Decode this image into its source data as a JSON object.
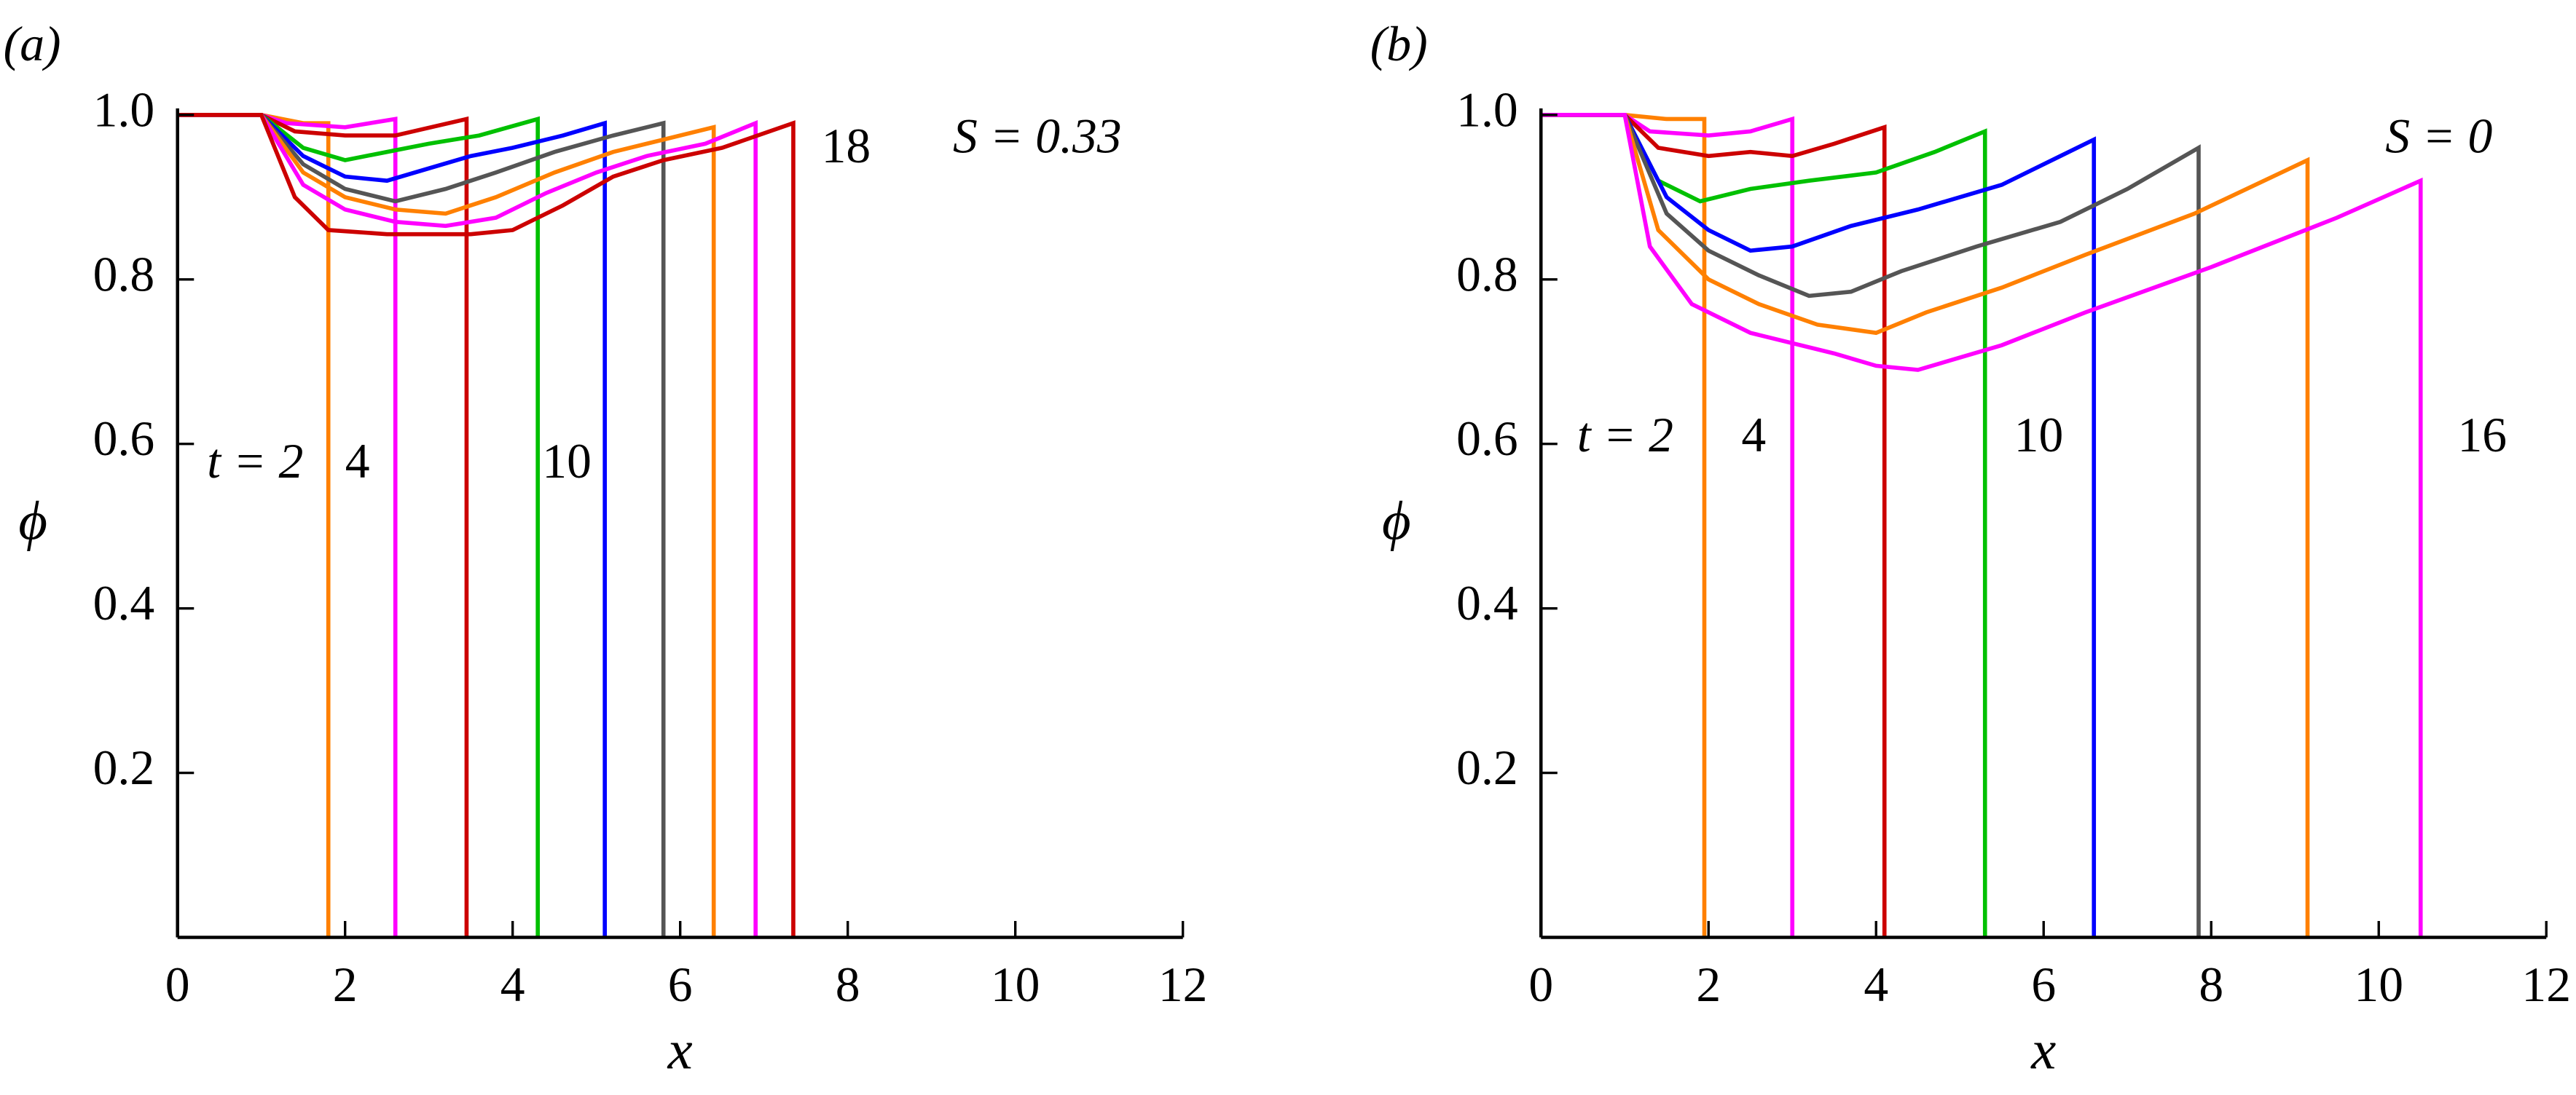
{
  "chart_data": [
    {
      "type": "line",
      "panel_label": "(a)",
      "xlabel": "x",
      "ylabel": "ϕ",
      "annotations": [
        "S = 0.33",
        "t = 2",
        "4",
        "10",
        "18"
      ],
      "xlim": [
        0,
        12
      ],
      "ylim": [
        0,
        1
      ],
      "xticks": [
        0,
        2,
        4,
        6,
        8,
        10,
        12
      ],
      "yticks": [
        0.2,
        0.4,
        0.6,
        0.8,
        {
          "value": 1,
          "label": "1.0"
        }
      ],
      "series": [
        {
          "color": "#ff8000",
          "x": [
            0,
            1,
            1.5,
            1.8,
            1.8
          ],
          "values": [
            1,
            1,
            0.99,
            0.99,
            0
          ]
        },
        {
          "color": "#ff00ff",
          "x": [
            0,
            1,
            1.3,
            2,
            2.6,
            2.6
          ],
          "values": [
            1,
            1,
            0.99,
            0.985,
            0.995,
            0
          ]
        },
        {
          "color": "#cc0000",
          "x": [
            0,
            1,
            1.4,
            2,
            2.6,
            3.45,
            3.45
          ],
          "values": [
            1,
            1,
            0.98,
            0.975,
            0.975,
            0.995,
            0
          ]
        },
        {
          "color": "#00c000",
          "x": [
            0,
            1,
            1.5,
            2,
            2.5,
            3,
            3.6,
            4.3,
            4.3
          ],
          "values": [
            1,
            1,
            0.96,
            0.945,
            0.955,
            0.965,
            0.975,
            0.995,
            0
          ]
        },
        {
          "color": "#0000ff",
          "x": [
            0,
            1,
            1.5,
            2,
            2.5,
            3,
            3.5,
            4,
            4.6,
            5.1,
            5.1
          ],
          "values": [
            1,
            1,
            0.95,
            0.925,
            0.92,
            0.935,
            0.95,
            0.96,
            0.975,
            0.99,
            0
          ]
        },
        {
          "color": "#555555",
          "x": [
            0,
            1,
            1.5,
            2,
            2.6,
            3.2,
            3.8,
            4.5,
            5.2,
            5.8,
            5.8
          ],
          "values": [
            1,
            1,
            0.94,
            0.91,
            0.895,
            0.91,
            0.93,
            0.955,
            0.975,
            0.99,
            0
          ]
        },
        {
          "color": "#ff8000",
          "x": [
            0,
            1,
            1.5,
            2,
            2.6,
            3.2,
            3.8,
            4.5,
            5.2,
            5.8,
            6.4,
            6.4
          ],
          "values": [
            1,
            1,
            0.93,
            0.9,
            0.885,
            0.88,
            0.9,
            0.93,
            0.955,
            0.97,
            0.985,
            0
          ]
        },
        {
          "color": "#ff00ff",
          "x": [
            0,
            1,
            1.5,
            2,
            2.6,
            3.2,
            3.8,
            4.4,
            5,
            5.6,
            6.3,
            6.9,
            6.9
          ],
          "values": [
            1,
            1,
            0.915,
            0.885,
            0.87,
            0.865,
            0.875,
            0.905,
            0.93,
            0.95,
            0.965,
            0.99,
            0
          ]
        },
        {
          "color": "#cc0000",
          "x": [
            0,
            1,
            1.4,
            1.8,
            2.5,
            3.5,
            4,
            4.6,
            5.2,
            5.8,
            6.5,
            7.35,
            7.35
          ],
          "values": [
            1,
            1,
            0.9,
            0.86,
            0.855,
            0.855,
            0.86,
            0.89,
            0.925,
            0.945,
            0.96,
            0.99,
            0
          ]
        }
      ]
    },
    {
      "type": "line",
      "panel_label": "(b)",
      "xlabel": "x",
      "ylabel": "ϕ",
      "annotations": [
        "S = 0",
        "t = 2",
        "4",
        "10",
        "16"
      ],
      "xlim": [
        0,
        12
      ],
      "ylim": [
        0,
        1
      ],
      "xticks": [
        0,
        2,
        4,
        6,
        8,
        10,
        12
      ],
      "yticks": [
        0.2,
        0.4,
        0.6,
        0.8,
        {
          "value": 1,
          "label": "1.0"
        }
      ],
      "series": [
        {
          "color": "#ff8000",
          "x": [
            0,
            1,
            1.5,
            1.95,
            1.95
          ],
          "values": [
            1,
            1,
            0.995,
            0.995,
            0
          ]
        },
        {
          "color": "#ff00ff",
          "x": [
            0,
            1,
            1.3,
            2,
            2.5,
            3,
            3
          ],
          "values": [
            1,
            1,
            0.98,
            0.975,
            0.98,
            0.995,
            0
          ]
        },
        {
          "color": "#cc0000",
          "x": [
            0,
            1,
            1.4,
            2,
            2.5,
            3,
            3.5,
            4.1,
            4.1
          ],
          "values": [
            1,
            1,
            0.96,
            0.95,
            0.955,
            0.95,
            0.965,
            0.985,
            0
          ]
        },
        {
          "color": "#00c000",
          "x": [
            0,
            1,
            1.4,
            1.9,
            2.5,
            3.2,
            4,
            4.7,
            5.3,
            5.3
          ],
          "values": [
            1,
            1,
            0.92,
            0.895,
            0.91,
            0.92,
            0.93,
            0.955,
            0.98,
            0
          ]
        },
        {
          "color": "#0000ff",
          "x": [
            0,
            1,
            1.5,
            2,
            2.5,
            3,
            3.7,
            4.5,
            5.5,
            6.2,
            6.6,
            6.6
          ],
          "values": [
            1,
            1,
            0.9,
            0.86,
            0.835,
            0.84,
            0.865,
            0.885,
            0.915,
            0.95,
            0.97,
            0
          ]
        },
        {
          "color": "#555555",
          "x": [
            0,
            1,
            1.5,
            2,
            2.6,
            3.2,
            3.7,
            4.3,
            5.2,
            6.2,
            7,
            7.85,
            7.85
          ],
          "values": [
            1,
            1,
            0.88,
            0.835,
            0.805,
            0.78,
            0.785,
            0.81,
            0.84,
            0.87,
            0.91,
            0.96,
            0
          ]
        },
        {
          "color": "#ff8000",
          "x": [
            0,
            1,
            1.4,
            2,
            2.6,
            3.3,
            4,
            4.6,
            5.5,
            6.5,
            7.8,
            9.15,
            9.15
          ],
          "values": [
            1,
            1,
            0.86,
            0.8,
            0.77,
            0.745,
            0.735,
            0.76,
            0.79,
            0.83,
            0.88,
            0.945,
            0
          ]
        },
        {
          "color": "#ff00ff",
          "x": [
            0,
            1,
            1.3,
            1.8,
            2.5,
            3.5,
            4,
            4.5,
            5.5,
            6.5,
            8,
            9.5,
            10.5,
            10.5
          ],
          "values": [
            1,
            1,
            0.84,
            0.77,
            0.735,
            0.71,
            0.695,
            0.69,
            0.72,
            0.76,
            0.815,
            0.875,
            0.92,
            0
          ]
        }
      ]
    }
  ]
}
